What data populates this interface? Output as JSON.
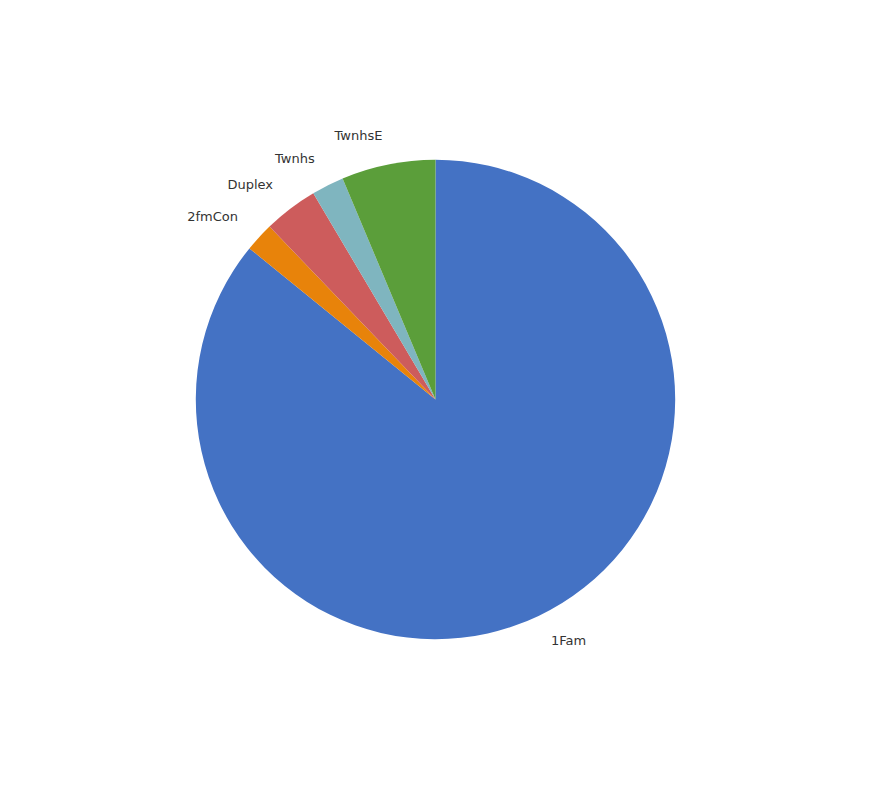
{
  "chart_data": {
    "type": "pie",
    "categories": [
      "1Fam",
      "2fmCon",
      "Duplex",
      "Twnhs",
      "TwnhsE"
    ],
    "values": [
      1220,
      28,
      52,
      31,
      90
    ],
    "colors": [
      "#4472C4",
      "#E8830A",
      "#CD5C5C",
      "#7FB5BF",
      "#5B9E3A"
    ]
  }
}
